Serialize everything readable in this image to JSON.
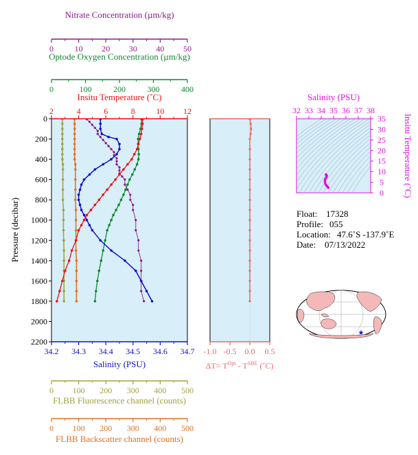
{
  "chart_data": {
    "type": "line",
    "float_info": {
      "float_label": "Float:",
      "float_value": "17328",
      "profile_label": "Profile:",
      "profile_value": "055",
      "location_label": "Location:",
      "location_value": "47.6˚S  -137.9˚E",
      "date_label": "Date:",
      "date_value": "07/13/2022"
    },
    "colors": {
      "nitrate": "#8b1a8b",
      "oxygen": "#118833",
      "temperature": "#ee1111",
      "salinity": "#1111cc",
      "fluorescence": "#a0a040",
      "backscatter": "#e07020",
      "delta_t": "#ee6666",
      "plot_bg": "#d8eef8"
    },
    "main_plot": {
      "pressure_axis": {
        "label": "Pressure (decibar)",
        "range": [
          0,
          2200
        ],
        "reversed": true,
        "ticks": [
          0,
          200,
          400,
          600,
          800,
          1000,
          1200,
          1400,
          1600,
          1800,
          2000,
          2200
        ]
      },
      "axes": {
        "nitrate": {
          "label": "Nitrate Concentration (µm/kg)",
          "range": [
            0,
            50
          ],
          "ticks": [
            0,
            10,
            20,
            30,
            40,
            50
          ]
        },
        "oxygen": {
          "label": "Optode Oxygen Concentration (µm/kg)",
          "range": [
            0,
            400
          ],
          "ticks": [
            0,
            100,
            200,
            300,
            400
          ]
        },
        "temperature": {
          "label": "Insitu Temperature (˚C)",
          "range": [
            2,
            12
          ],
          "ticks": [
            2,
            4,
            6,
            8,
            10,
            12
          ]
        },
        "salinity": {
          "label": "Salinity (PSU)",
          "range": [
            34.2,
            34.7
          ],
          "ticks": [
            34.2,
            34.3,
            34.4,
            34.5,
            34.6,
            34.7
          ]
        },
        "fluorescence": {
          "label": "FLBB Fluorescence channel (counts)",
          "range": [
            0,
            500
          ],
          "ticks": [
            0,
            100,
            200,
            300,
            400,
            500
          ]
        },
        "backscatter": {
          "label": "FLBB Backscatter channel (counts)",
          "range": [
            0,
            500
          ],
          "ticks": [
            0,
            100,
            200,
            300,
            400,
            500
          ]
        }
      },
      "series": {
        "temperature": [
          [
            8.7,
            5
          ],
          [
            8.7,
            50
          ],
          [
            8.65,
            100
          ],
          [
            8.6,
            150
          ],
          [
            8.5,
            200
          ],
          [
            8.4,
            250
          ],
          [
            8.3,
            300
          ],
          [
            8.1,
            350
          ],
          [
            7.9,
            400
          ],
          [
            7.6,
            450
          ],
          [
            7.3,
            500
          ],
          [
            7.0,
            550
          ],
          [
            6.7,
            600
          ],
          [
            6.4,
            650
          ],
          [
            6.1,
            700
          ],
          [
            5.8,
            750
          ],
          [
            5.5,
            800
          ],
          [
            5.2,
            850
          ],
          [
            4.9,
            900
          ],
          [
            4.6,
            950
          ],
          [
            4.4,
            1000
          ],
          [
            4.2,
            1050
          ],
          [
            4.0,
            1100
          ],
          [
            3.8,
            1200
          ],
          [
            3.5,
            1300
          ],
          [
            3.3,
            1400
          ],
          [
            3.0,
            1500
          ],
          [
            2.8,
            1600
          ],
          [
            2.6,
            1700
          ],
          [
            2.4,
            1800
          ]
        ],
        "salinity": [
          [
            34.38,
            5
          ],
          [
            34.38,
            50
          ],
          [
            34.38,
            100
          ],
          [
            34.385,
            150
          ],
          [
            34.41,
            180
          ],
          [
            34.44,
            200
          ],
          [
            34.45,
            250
          ],
          [
            34.45,
            300
          ],
          [
            34.44,
            350
          ],
          [
            34.42,
            400
          ],
          [
            34.39,
            450
          ],
          [
            34.36,
            500
          ],
          [
            34.34,
            550
          ],
          [
            34.32,
            600
          ],
          [
            34.31,
            650
          ],
          [
            34.305,
            700
          ],
          [
            34.3,
            750
          ],
          [
            34.3,
            800
          ],
          [
            34.305,
            850
          ],
          [
            34.31,
            900
          ],
          [
            34.32,
            950
          ],
          [
            34.33,
            1000
          ],
          [
            34.34,
            1050
          ],
          [
            34.35,
            1100
          ],
          [
            34.38,
            1200
          ],
          [
            34.42,
            1300
          ],
          [
            34.47,
            1400
          ],
          [
            34.51,
            1500
          ],
          [
            34.53,
            1600
          ],
          [
            34.55,
            1700
          ],
          [
            34.57,
            1800
          ]
        ],
        "oxygen": [
          [
            265,
            5
          ],
          [
            265,
            50
          ],
          [
            262,
            100
          ],
          [
            258,
            150
          ],
          [
            255,
            200
          ],
          [
            255,
            250
          ],
          [
            256,
            300
          ],
          [
            257,
            350
          ],
          [
            256,
            400
          ],
          [
            252,
            450
          ],
          [
            245,
            500
          ],
          [
            238,
            550
          ],
          [
            230,
            600
          ],
          [
            224,
            650
          ],
          [
            218,
            700
          ],
          [
            212,
            750
          ],
          [
            205,
            800
          ],
          [
            198,
            850
          ],
          [
            190,
            900
          ],
          [
            182,
            950
          ],
          [
            176,
            1000
          ],
          [
            170,
            1050
          ],
          [
            164,
            1100
          ],
          [
            158,
            1200
          ],
          [
            152,
            1300
          ],
          [
            146,
            1400
          ],
          [
            140,
            1500
          ],
          [
            135,
            1600
          ],
          [
            131,
            1700
          ],
          [
            128,
            1800
          ]
        ],
        "nitrate": [
          [
            13,
            5
          ],
          [
            14,
            30
          ],
          [
            15,
            60
          ],
          [
            16,
            90
          ],
          [
            17,
            120
          ],
          [
            17,
            150
          ],
          [
            18,
            180
          ],
          [
            19,
            210
          ],
          [
            20,
            240
          ],
          [
            21,
            270
          ],
          [
            22,
            300
          ],
          [
            23,
            330
          ],
          [
            23,
            360
          ],
          [
            24,
            390
          ],
          [
            24,
            420
          ],
          [
            24,
            450
          ],
          [
            25,
            480
          ],
          [
            25,
            510
          ],
          [
            25,
            540
          ],
          [
            26,
            570
          ],
          [
            27,
            600
          ],
          [
            27,
            650
          ],
          [
            28,
            700
          ],
          [
            29,
            750
          ],
          [
            29,
            800
          ],
          [
            30,
            850
          ],
          [
            30,
            900
          ],
          [
            31,
            1000
          ],
          [
            31,
            1100
          ],
          [
            32,
            1200
          ],
          [
            32,
            1300
          ],
          [
            33,
            1400
          ],
          [
            33,
            1500
          ],
          [
            33,
            1600
          ],
          [
            33,
            1700
          ],
          [
            34,
            1800
          ]
        ],
        "fluorescence": [
          [
            40,
            5
          ],
          [
            40,
            50
          ],
          [
            40,
            100
          ],
          [
            40,
            150
          ],
          [
            40,
            200
          ],
          [
            40,
            250
          ],
          [
            40,
            300
          ],
          [
            40,
            350
          ],
          [
            40,
            400
          ],
          [
            42,
            450
          ],
          [
            42,
            500
          ],
          [
            42,
            600
          ],
          [
            42,
            700
          ],
          [
            42,
            800
          ],
          [
            44,
            900
          ],
          [
            44,
            1000
          ],
          [
            44,
            1100
          ],
          [
            45,
            1200
          ],
          [
            46,
            1300
          ],
          [
            46,
            1400
          ],
          [
            46,
            1500
          ],
          [
            46,
            1600
          ],
          [
            46,
            1700
          ],
          [
            46,
            1800
          ]
        ],
        "backscatter": [
          [
            85,
            5
          ],
          [
            85,
            50
          ],
          [
            85,
            100
          ],
          [
            85,
            150
          ],
          [
            85,
            200
          ],
          [
            85,
            250
          ],
          [
            85,
            300
          ],
          [
            85,
            350
          ],
          [
            85,
            400
          ],
          [
            88,
            450
          ],
          [
            88,
            500
          ],
          [
            88,
            600
          ],
          [
            88,
            700
          ],
          [
            88,
            800
          ],
          [
            90,
            900
          ],
          [
            90,
            1000
          ],
          [
            90,
            1100
          ],
          [
            90,
            1200
          ],
          [
            90,
            1300
          ],
          [
            92,
            1400
          ],
          [
            92,
            1500
          ],
          [
            92,
            1600
          ],
          [
            92,
            1700
          ],
          [
            92,
            1800
          ]
        ]
      }
    },
    "delta_t_plot": {
      "label": "ΔT= T",
      "label_sup1": "Opt",
      "label_mid": " - T",
      "label_sup2": "SBE",
      "label_units": " (˚C)",
      "range": [
        -1.0,
        0.5
      ],
      "ticks": [
        -1.0,
        -0.5,
        0.0,
        0.5
      ],
      "series": [
        [
          0.0,
          5
        ],
        [
          0.02,
          50
        ],
        [
          0.03,
          100
        ],
        [
          0.02,
          150
        ],
        [
          0.0,
          200
        ],
        [
          0.0,
          300
        ],
        [
          0.0,
          400
        ],
        [
          0.0,
          500
        ],
        [
          0.0,
          600
        ],
        [
          0.0,
          700
        ],
        [
          0.0,
          800
        ],
        [
          0.0,
          900
        ],
        [
          0.0,
          1000
        ],
        [
          0.0,
          1100
        ],
        [
          0.0,
          1200
        ],
        [
          0.0,
          1300
        ],
        [
          0.0,
          1400
        ],
        [
          0.0,
          1500
        ],
        [
          0.0,
          1600
        ],
        [
          0.0,
          1700
        ],
        [
          0.0,
          1800
        ]
      ]
    },
    "ts_plot": {
      "xlabel": "Salinity (PSU)",
      "ylabel": "Insitu Temperature (˚C)",
      "xlim": [
        32,
        38
      ],
      "ylim": [
        0,
        35
      ],
      "xticks": [
        32,
        33,
        34,
        35,
        36,
        37,
        38
      ],
      "yticks": [
        0,
        5,
        10,
        15,
        20,
        25,
        30,
        35
      ],
      "points": [
        [
          34.38,
          8.7
        ],
        [
          34.41,
          8.4
        ],
        [
          34.45,
          8.1
        ],
        [
          34.44,
          7.6
        ],
        [
          34.38,
          7.0
        ],
        [
          34.32,
          6.4
        ],
        [
          34.3,
          5.8
        ],
        [
          34.31,
          5.0
        ],
        [
          34.34,
          4.2
        ],
        [
          34.4,
          3.6
        ],
        [
          34.47,
          3.2
        ],
        [
          34.53,
          2.8
        ],
        [
          34.57,
          2.4
        ]
      ]
    }
  }
}
